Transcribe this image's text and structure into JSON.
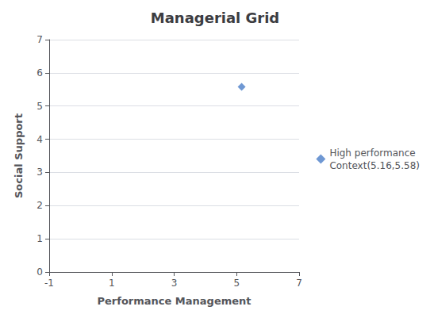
{
  "chart_data": {
    "type": "scatter",
    "title": "Managerial Grid",
    "xlabel": "Performance Management",
    "ylabel": "Social Support",
    "x": [
      5.16
    ],
    "series": [
      {
        "name": "High performance\nContext(5.16,5.58)",
        "color": "#4B7EC8",
        "marker": "diamond",
        "values": [
          5.58
        ]
      }
    ],
    "xlim": [
      -1,
      7
    ],
    "ylim": [
      0,
      7
    ],
    "xticks": [
      -1,
      1,
      3,
      5,
      7
    ],
    "yticks": [
      0,
      1,
      2,
      3,
      4,
      5,
      6,
      7
    ],
    "grid": "y",
    "legend": "right"
  }
}
